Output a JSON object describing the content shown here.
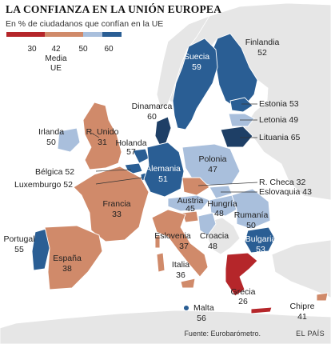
{
  "title": "LA CONFIANZA EN LA UNIÓN EUROPEA",
  "subtitle": "En % de ciudadanos que confían en la UE",
  "legend": {
    "ticks": [
      "30",
      "42",
      "50",
      "60"
    ],
    "average_label_line1": "Media",
    "average_label_line2": "UE",
    "colors": [
      "#b5262a",
      "#d08a6a",
      "#a9bfdc",
      "#2a5e94"
    ]
  },
  "colors": {
    "very_low": "#b5262a",
    "low": "#d08a6a",
    "mid": "#a9bfdc",
    "high": "#2a5e94",
    "very_high": "#1e3f66",
    "non_eu": "#e6e6e6",
    "sea": "#ffffff"
  },
  "countries": [
    {
      "id": "suecia",
      "name": "Suecia",
      "value": 59,
      "value_text": "59",
      "color": "#2a5e94"
    },
    {
      "id": "finlandia",
      "name": "Finlandia",
      "value": 52,
      "value_text": "52",
      "color": "#2a5e94"
    },
    {
      "id": "dinamarca",
      "name": "Dinamarca",
      "value": 60,
      "value_text": "60",
      "color": "#1e3f66"
    },
    {
      "id": "estonia",
      "name": "Estonia",
      "value": 53,
      "value_text": "Estonia 53",
      "color": "#2a5e94"
    },
    {
      "id": "letonia",
      "name": "Letonia",
      "value": 49,
      "value_text": "Letonia 49",
      "color": "#a9bfdc"
    },
    {
      "id": "lituania",
      "name": "Lituania",
      "value": 65,
      "value_text": "Lituania 65",
      "color": "#1e3f66"
    },
    {
      "id": "irlanda",
      "name": "Irlanda",
      "value": 50,
      "value_text": "50",
      "color": "#a9bfdc"
    },
    {
      "id": "reino_unido",
      "name": "R. Unido",
      "value": 31,
      "value_text": "31",
      "color": "#d08a6a"
    },
    {
      "id": "holanda",
      "name": "Holanda",
      "value": 57,
      "value_text": "57",
      "color": "#2a5e94"
    },
    {
      "id": "polonia",
      "name": "Polonia",
      "value": 47,
      "value_text": "47",
      "color": "#a9bfdc"
    },
    {
      "id": "belgica",
      "name": "Bélgica",
      "value": 52,
      "value_text": "Bélgica 52",
      "color": "#2a5e94"
    },
    {
      "id": "alemania",
      "name": "Alemania",
      "value": 51,
      "value_text": "51",
      "color": "#2a5e94"
    },
    {
      "id": "luxemburgo",
      "name": "Luxemburgo",
      "value": 52,
      "value_text": "Luxemburgo 52",
      "color": "#2a5e94"
    },
    {
      "id": "rep_checa",
      "name": "R. Checa",
      "value": 32,
      "value_text": "R. Checa 32",
      "color": "#d08a6a"
    },
    {
      "id": "eslovaquia",
      "name": "Eslovaquia",
      "value": 43,
      "value_text": "Eslovaquia 43",
      "color": "#a9bfdc"
    },
    {
      "id": "francia",
      "name": "Francia",
      "value": 33,
      "value_text": "33",
      "color": "#d08a6a"
    },
    {
      "id": "austria",
      "name": "Austria",
      "value": 45,
      "value_text": "45",
      "color": "#a9bfdc"
    },
    {
      "id": "hungria",
      "name": "Hungría",
      "value": 48,
      "value_text": "48",
      "color": "#a9bfdc"
    },
    {
      "id": "rumania",
      "name": "Rumanía",
      "value": 50,
      "value_text": "50",
      "color": "#a9bfdc"
    },
    {
      "id": "portugal",
      "name": "Portugal",
      "value": 55,
      "value_text": "55",
      "color": "#2a5e94"
    },
    {
      "id": "eslovenia",
      "name": "Eslovenia",
      "value": 37,
      "value_text": "37",
      "color": "#d08a6a"
    },
    {
      "id": "croacia",
      "name": "Croacia",
      "value": 48,
      "value_text": "48",
      "color": "#a9bfdc"
    },
    {
      "id": "bulgaria",
      "name": "Bulgaria",
      "value": 53,
      "value_text": "53",
      "color": "#2a5e94"
    },
    {
      "id": "espana",
      "name": "España",
      "value": 38,
      "value_text": "38",
      "color": "#d08a6a"
    },
    {
      "id": "italia",
      "name": "Italia",
      "value": 36,
      "value_text": "36",
      "color": "#d08a6a"
    },
    {
      "id": "grecia",
      "name": "Grecia",
      "value": 26,
      "value_text": "26",
      "color": "#b5262a"
    },
    {
      "id": "malta",
      "name": "Malta",
      "value": 56,
      "value_text": "56",
      "color": "#2a5e94"
    },
    {
      "id": "chipre",
      "name": "Chipre",
      "value": 41,
      "value_text": "41",
      "color": "#d08a6a"
    }
  ],
  "footer": {
    "source": "Fuente: Eurobarómetro.",
    "brand": "EL PAÍS"
  }
}
